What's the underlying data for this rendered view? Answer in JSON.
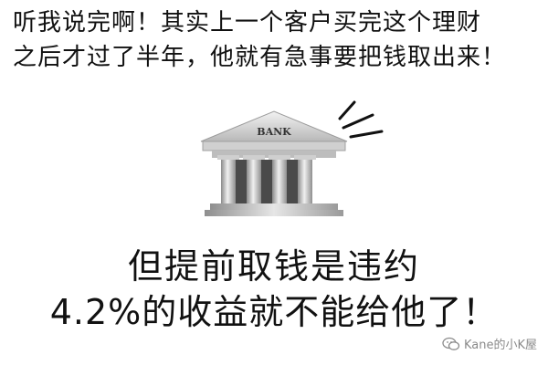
{
  "caption": {
    "line1": "听我说完啊！其实上一个客户买完这个理财",
    "line2": "之后才过了半年，他就有急事要把钱取出来！"
  },
  "bank": {
    "sign_text": "BANK",
    "icon": "bank-building-icon"
  },
  "headline": {
    "line1": "但提前取钱是违约",
    "line2": "4.2%的收益就不能给他了！"
  },
  "watermark": {
    "text": "Kane的小K屋",
    "icon": "wechat-icon"
  }
}
